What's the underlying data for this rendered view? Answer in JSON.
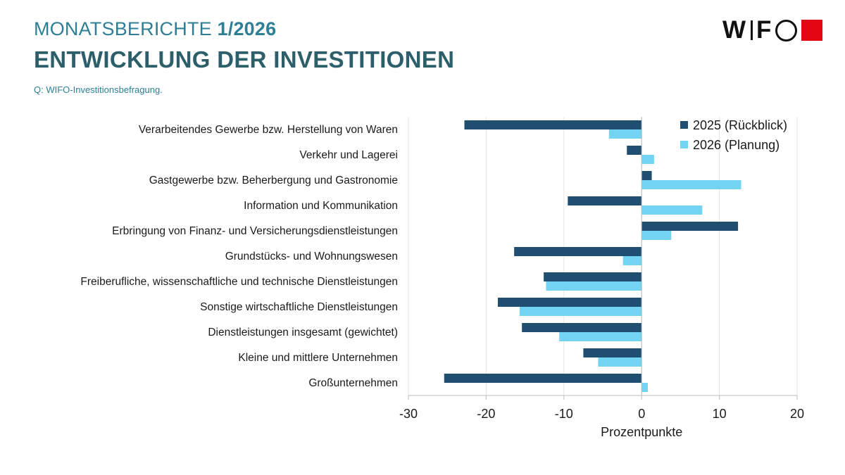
{
  "header": {
    "series": "MONATSBERICHTE",
    "issue": "1/2026",
    "title": "ENTWICKLUNG DER INVESTITIONEN",
    "source": "Q: WIFO-Investitionsbefragung."
  },
  "logo": {
    "text_part1": "W",
    "text_part2": "F",
    "square_color": "#E30613"
  },
  "chart_data": {
    "type": "bar",
    "orientation": "horizontal",
    "title": "",
    "xlabel": "Prozentpunkte",
    "ylabel": "",
    "xlim": [
      -30,
      20
    ],
    "xticks": [
      -30,
      -20,
      -10,
      0,
      10,
      20
    ],
    "xtick_labels": [
      "-30",
      "-20",
      "-10",
      "0",
      "10",
      "20"
    ],
    "grid": true,
    "legend_position": "top-right",
    "categories": [
      "Verarbeitendes Gewerbe bzw. Herstellung von Waren",
      "Verkehr und Lagerei",
      "Gastgewerbe bzw. Beherbergung und Gastronomie",
      "Information und Kommunikation",
      "Erbringung von Finanz- und Versicherungsdienstleistungen",
      "Grundstücks- und Wohnungswesen",
      "Freiberufliche, wissenschaftliche und technische Dienstleistungen",
      "Sonstige wirtschaftliche Dienstleistungen",
      "Dienstleistungen insgesamt (gewichtet)",
      "Kleine und mittlere Unternehmen",
      "Großunternehmen"
    ],
    "series": [
      {
        "name": "2025 (Rückblick)",
        "color": "#1F4E71",
        "values": [
          -22.8,
          -1.9,
          1.3,
          -9.5,
          12.4,
          -16.4,
          -12.6,
          -18.5,
          -15.4,
          -7.5,
          -25.4
        ]
      },
      {
        "name": "2026 (Planung)",
        "color": "#72D3F3",
        "values": [
          -4.2,
          1.6,
          12.8,
          7.8,
          3.8,
          -2.4,
          -12.3,
          -15.7,
          -10.6,
          -5.6,
          0.8
        ]
      }
    ]
  }
}
